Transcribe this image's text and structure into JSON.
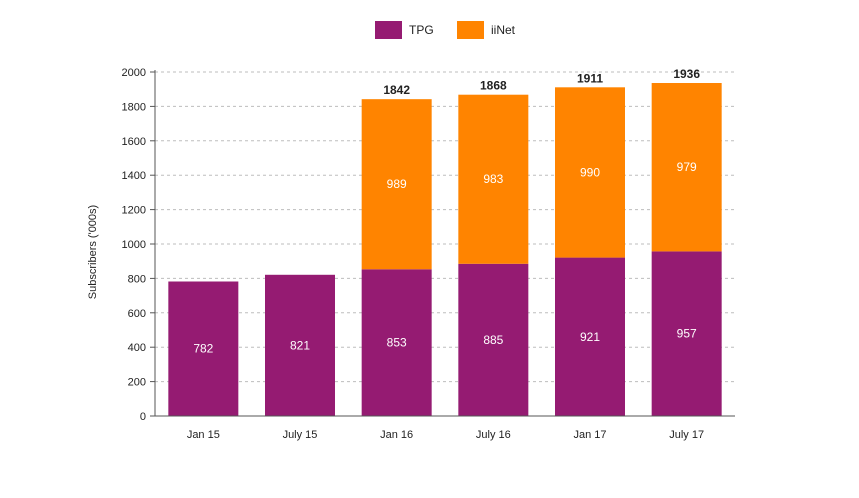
{
  "chart_data": {
    "type": "bar",
    "stacked": true,
    "categories": [
      "Jan 15",
      "July 15",
      "Jan 16",
      "July 16",
      "Jan 17",
      "July 17"
    ],
    "series": [
      {
        "name": "TPG",
        "color": "#951b72",
        "values": [
          782,
          821,
          853,
          885,
          921,
          957
        ]
      },
      {
        "name": "iiNet",
        "color": "#ff8400",
        "values": [
          null,
          null,
          989,
          983,
          990,
          979
        ]
      }
    ],
    "totals": [
      null,
      null,
      1842,
      1868,
      1911,
      1936
    ],
    "ylabel": "Subscribers ('000s)",
    "xlabel": "",
    "ylim": [
      0,
      2000
    ],
    "yticks": [
      0,
      200,
      400,
      600,
      800,
      1000,
      1200,
      1400,
      1600,
      1800,
      2000
    ],
    "grid": "horizontal-dashed",
    "legend_position": "top-center"
  }
}
